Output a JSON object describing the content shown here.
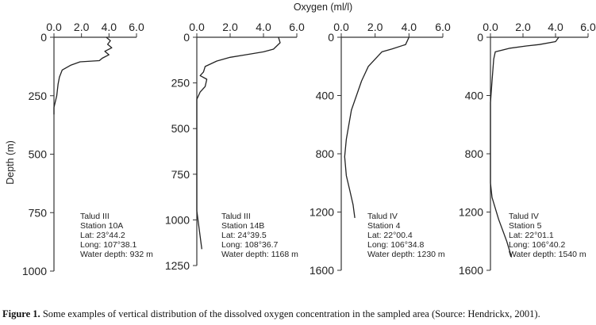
{
  "figure": {
    "top_axis_title": "Oxygen (ml/l)",
    "y_axis_title": "Depth (m)",
    "caption_label": "Figure 1.",
    "caption_text": " Some examples of vertical distribution of the dissolved oxygen concentration in the sampled area (Source: Hendrickx, 2001)."
  },
  "chart_data": [
    {
      "type": "line",
      "x_label": "Oxygen (ml/l)",
      "y_label": "Depth (m)",
      "xlim": [
        0,
        6
      ],
      "ylim": [
        1000,
        0
      ],
      "x_ticks": [
        "0.0",
        "2.0",
        "4.0",
        "6.0"
      ],
      "y_ticks": [
        "0",
        "250",
        "500",
        "750",
        "1000"
      ],
      "info": [
        "Talud III",
        "Station 10A",
        "Lat: 23°44.2",
        "Long: 107°38.1",
        "Water depth: 932 m"
      ],
      "x": [
        3.8,
        4.1,
        3.9,
        4.2,
        3.7,
        4.0,
        3.5,
        3.3,
        1.9,
        1.2,
        0.6,
        0.4,
        0.3,
        0.2,
        0.0,
        0.0
      ],
      "y": [
        0,
        15,
        30,
        45,
        60,
        75,
        90,
        100,
        105,
        120,
        140,
        170,
        200,
        250,
        300,
        330
      ]
    },
    {
      "type": "line",
      "x_label": "Oxygen (ml/l)",
      "y_label": "Depth (m)",
      "xlim": [
        0,
        6
      ],
      "ylim": [
        1250,
        0
      ],
      "x_ticks": [
        "0.0",
        "2.0",
        "4.0",
        "6.0"
      ],
      "y_ticks": [
        "0",
        "250",
        "500",
        "750",
        "1000",
        "1250"
      ],
      "info": [
        "Talud III",
        "Station 14B",
        "Lat: 24°39.5",
        "Long: 108°36.7",
        "Water depth: 1168 m"
      ],
      "x": [
        4.9,
        5.0,
        4.6,
        4.0,
        3.0,
        2.0,
        1.2,
        0.5,
        0.4,
        0.2,
        0.6,
        0.5,
        0.2,
        0.0,
        0.0,
        0.0,
        0.3
      ],
      "y": [
        0,
        30,
        65,
        80,
        95,
        110,
        130,
        160,
        190,
        210,
        230,
        270,
        300,
        340,
        400,
        950,
        1160
      ]
    },
    {
      "type": "line",
      "x_label": "Oxygen (ml/l)",
      "y_label": "Depth (m)",
      "xlim": [
        0,
        6
      ],
      "ylim": [
        1600,
        0
      ],
      "x_ticks": [
        "0.0",
        "2.0",
        "4.0",
        "6.0"
      ],
      "y_ticks": [
        "0",
        "400",
        "800",
        "1200",
        "1600"
      ],
      "info": [
        "Talud IV",
        "Station 4",
        "Lat: 22°00.4",
        "Long: 106°34.8",
        "Water depth: 1230 m"
      ],
      "x": [
        4.0,
        3.8,
        3.0,
        2.4,
        2.0,
        1.6,
        1.4,
        1.2,
        0.6,
        0.3,
        0.2,
        0.3,
        0.5,
        0.7,
        0.8
      ],
      "y": [
        0,
        50,
        80,
        100,
        150,
        200,
        250,
        300,
        500,
        700,
        820,
        950,
        1050,
        1150,
        1240
      ]
    },
    {
      "type": "line",
      "x_label": "Oxygen (ml/l)",
      "y_label": "Depth (m)",
      "xlim": [
        0,
        6
      ],
      "ylim": [
        1600,
        0
      ],
      "x_ticks": [
        "0.0",
        "2.0",
        "4.0",
        "6.0"
      ],
      "y_ticks": [
        "0",
        "400",
        "800",
        "1200",
        "1600"
      ],
      "info": [
        "Talud IV",
        "Station 5",
        "Lat: 22°01.1",
        "Long: 106°40.2",
        "Water depth: 1540 m"
      ],
      "x": [
        4.2,
        4.0,
        3.0,
        2.2,
        1.2,
        0.3,
        0.2,
        0.1,
        0.0,
        0.0,
        0.0,
        0.1,
        0.5,
        1.0,
        1.3
      ],
      "y": [
        0,
        30,
        50,
        60,
        75,
        100,
        150,
        300,
        450,
        800,
        1000,
        1100,
        1250,
        1400,
        1510
      ]
    }
  ]
}
